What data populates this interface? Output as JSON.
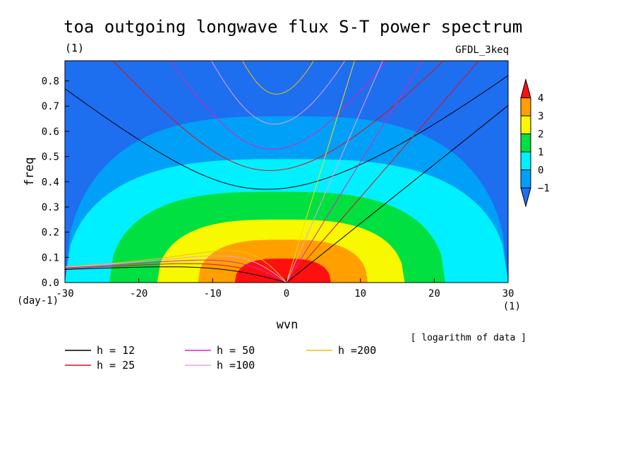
{
  "chart_data": {
    "type": "heatmap",
    "title": "toa outgoing longwave flux S-T power spectrum",
    "units_label": "(1)",
    "model_label": "GFDL_3keq",
    "xlabel": "wvn",
    "ylabel": "freq",
    "x_unit": "(1)",
    "y_unit": "(day-1)",
    "xlim": [
      -30,
      30
    ],
    "ylim": [
      0,
      0.88
    ],
    "x_ticks": [
      -30,
      -20,
      -10,
      0,
      10,
      20,
      30
    ],
    "y_ticks": [
      0.0,
      0.1,
      0.2,
      0.3,
      0.4,
      0.5,
      0.6,
      0.7,
      0.8
    ],
    "y_tick_labels": [
      "0.0",
      "0.1",
      "0.2",
      "0.3",
      "0.4",
      "0.5",
      "0.6",
      "0.7",
      "0.8"
    ],
    "note": "[ logarithm of data ]",
    "colorbar": {
      "levels": [
        -1,
        0,
        1,
        2,
        3,
        4
      ],
      "labels": [
        "−1",
        "0",
        "1",
        "2",
        "3",
        "4"
      ],
      "colors": [
        "#1e6ef0",
        "#00a0f8",
        "#00f0ff",
        "#00e040",
        "#f8f800",
        "#ffa000",
        "#ff1010"
      ]
    },
    "contour_regions": [
      {
        "level": -1,
        "xmin": -30,
        "xmax": 30,
        "ymax": 0.88
      },
      {
        "level": 0,
        "xmin": -30,
        "xmax": 30,
        "ymax": 0.66
      },
      {
        "level": 1,
        "xmin": -30,
        "xmax": 30,
        "ymax": 0.49
      },
      {
        "level": 2,
        "xmin": -24,
        "xmax": 21.5,
        "ymax": 0.36
      },
      {
        "level": 3,
        "xmin": -17.5,
        "xmax": 16,
        "ymax": 0.25
      },
      {
        "level": 4,
        "xmin": -12,
        "xmax": 11,
        "ymax": 0.17
      },
      {
        "level": 5,
        "xmin": -7,
        "xmax": 6,
        "ymax": 0.095
      }
    ],
    "series": [
      {
        "name": "h = 12",
        "h": 12,
        "color": "#000000"
      },
      {
        "name": "h = 25",
        "h": 25,
        "color": "#e01010"
      },
      {
        "name": "h = 50",
        "h": 50,
        "color": "#e020c0"
      },
      {
        "name": "h =100",
        "h": 100,
        "color": "#e8a0e8"
      },
      {
        "name": "h =200",
        "h": 200,
        "color": "#f0c000"
      }
    ],
    "kelvin_series": [
      {
        "h": 12,
        "color": "#000000"
      },
      {
        "h": 25,
        "color": "#e01010"
      },
      {
        "h": 50,
        "color": "#e020c0"
      },
      {
        "h": 100,
        "color": "#e8a0e8"
      },
      {
        "h": 200,
        "color": "#f0e000"
      }
    ]
  }
}
